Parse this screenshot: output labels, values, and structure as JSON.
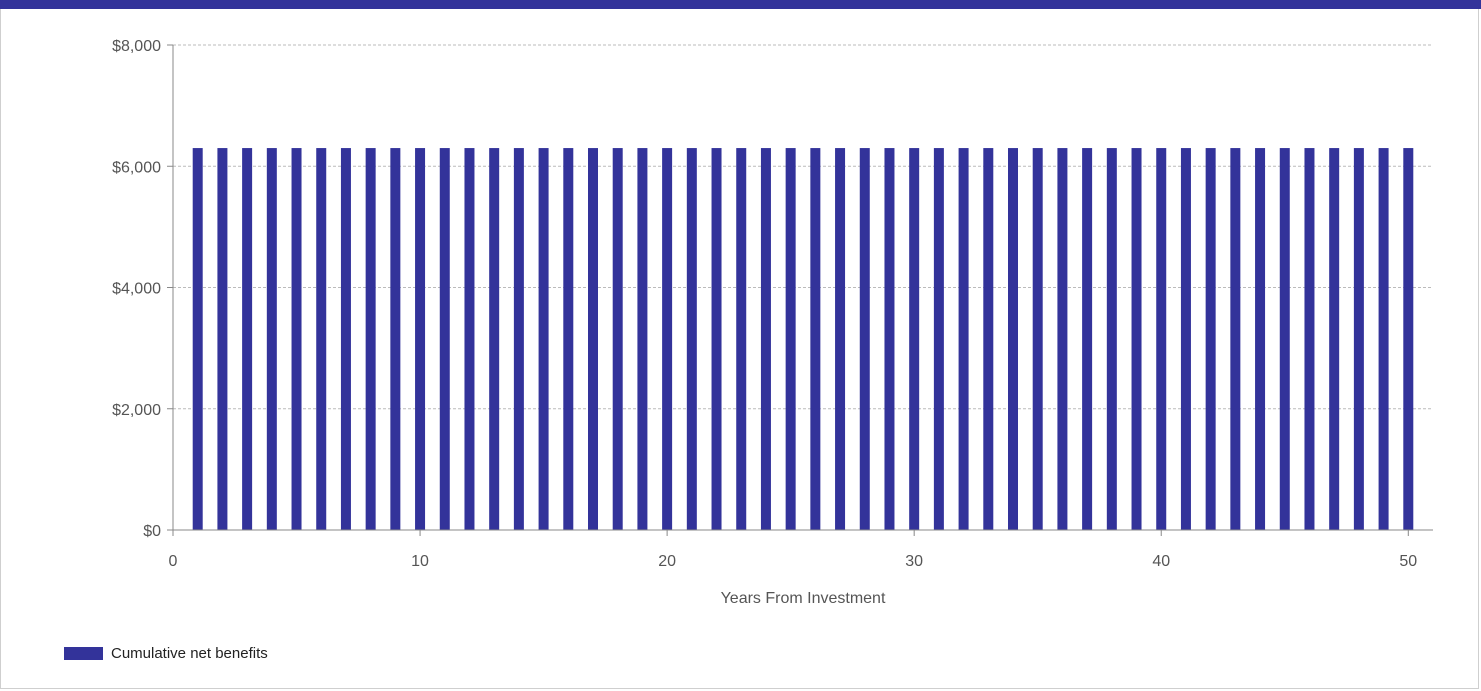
{
  "chart_data": {
    "type": "bar",
    "xlabel": "Years From Investment",
    "ylabel": "",
    "x": [
      1,
      2,
      3,
      4,
      5,
      6,
      7,
      8,
      9,
      10,
      11,
      12,
      13,
      14,
      15,
      16,
      17,
      18,
      19,
      20,
      21,
      22,
      23,
      24,
      25,
      26,
      27,
      28,
      29,
      30,
      31,
      32,
      33,
      34,
      35,
      36,
      37,
      38,
      39,
      40,
      41,
      42,
      43,
      44,
      45,
      46,
      47,
      48,
      49,
      50
    ],
    "series": [
      {
        "name": "Cumulative net benefits",
        "values": [
          6300,
          6300,
          6300,
          6300,
          6300,
          6300,
          6300,
          6300,
          6300,
          6300,
          6300,
          6300,
          6300,
          6300,
          6300,
          6300,
          6300,
          6300,
          6300,
          6300,
          6300,
          6300,
          6300,
          6300,
          6300,
          6300,
          6300,
          6300,
          6300,
          6300,
          6300,
          6300,
          6300,
          6300,
          6300,
          6300,
          6300,
          6300,
          6300,
          6300,
          6300,
          6300,
          6300,
          6300,
          6300,
          6300,
          6300,
          6300,
          6300,
          6300
        ],
        "color": "#33339a"
      }
    ],
    "xlim": [
      0,
      51
    ],
    "ylim": [
      0,
      8000
    ],
    "x_ticks": [
      0,
      10,
      20,
      30,
      40,
      50
    ],
    "y_ticks": [
      0,
      2000,
      4000,
      6000,
      8000
    ],
    "y_tick_labels": [
      "$0",
      "$2,000",
      "$4,000",
      "$6,000",
      "$8,000"
    ],
    "grid": true,
    "legend_position": "bottom-left"
  },
  "colors": {
    "accent": "#33339a",
    "grid": "#bbbbbb",
    "axis": "#888888"
  }
}
